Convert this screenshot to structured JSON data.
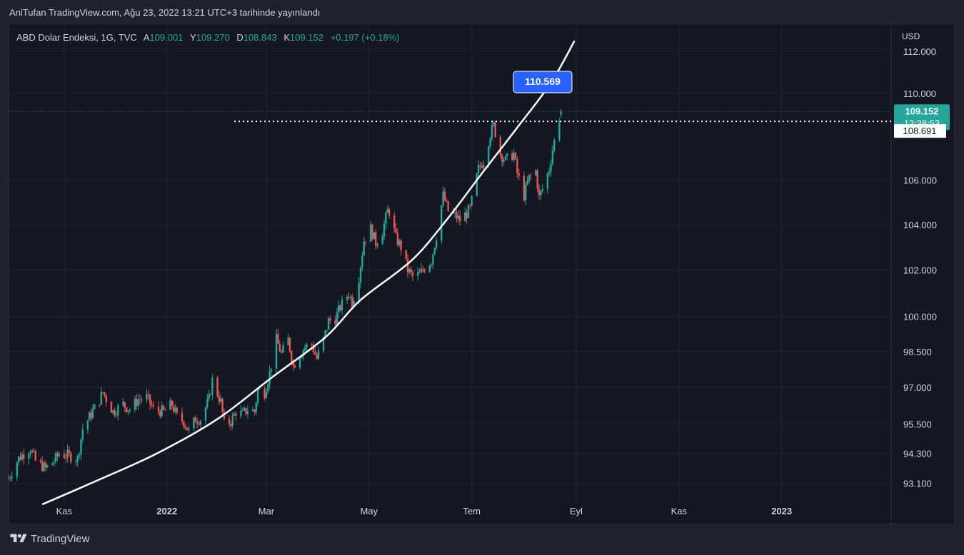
{
  "header": {
    "publish_line": "AnlTufan TradingView.com, Ağu 23, 2022 13:21 UTC+3 tarihinde yayınlandı"
  },
  "legend": {
    "symbol": "ABD Dolar Endeksi, 1G, TVC",
    "open_label": "A",
    "open": "109.001",
    "high_label": "Y",
    "high": "109.270",
    "low_label": "D",
    "low": "108.843",
    "close_label": "K",
    "close": "109.152",
    "change": "+0.197 (+0.18%)"
  },
  "footer": {
    "brand": "TradingView",
    "logo_icon": "tradingview-logo-icon"
  },
  "chart_data": {
    "type": "candlestick",
    "currency_label": "USD",
    "y_scale": "log",
    "ylim": [
      92.3,
      113.3
    ],
    "y_ticks": [
      "112.000",
      "110.000",
      "106.000",
      "104.000",
      "102.000",
      "100.000",
      "98.500",
      "97.000",
      "95.500",
      "94.300",
      "93.100"
    ],
    "x_ticks": [
      "Kas",
      "2022",
      "Mar",
      "May",
      "Tem",
      "Eyl",
      "Kas",
      "2023"
    ],
    "x_tick_dates": [
      "2021-11-01",
      "2022-01-01",
      "2022-03-01",
      "2022-05-01",
      "2022-07-01",
      "2022-09-01",
      "2022-11-01",
      "2023-01-01"
    ],
    "xlim": [
      "2021-09-29",
      "2023-03-07"
    ],
    "last_price": "109.152",
    "countdown": "12:38:53",
    "horizontal_line": {
      "value": 108.691,
      "label": "108.691"
    },
    "curve_label": "110.569",
    "colors": {
      "up": "#26a69a",
      "down": "#ef5350",
      "curve": "#ffffff",
      "label": "#2962ff"
    },
    "grid": true,
    "closes": [
      {
        "d": "2021-09-29",
        "c": 93.3
      },
      {
        "d": "2021-10-05",
        "c": 94.1
      },
      {
        "d": "2021-10-08",
        "c": 94.3
      },
      {
        "d": "2021-10-12",
        "c": 94.5
      },
      {
        "d": "2021-10-15",
        "c": 94.0
      },
      {
        "d": "2021-10-21",
        "c": 93.7
      },
      {
        "d": "2021-10-26",
        "c": 94.0
      },
      {
        "d": "2021-10-29",
        "c": 94.3
      },
      {
        "d": "2021-11-04",
        "c": 94.2
      },
      {
        "d": "2021-11-09",
        "c": 94.1
      },
      {
        "d": "2021-11-12",
        "c": 95.3
      },
      {
        "d": "2021-11-17",
        "c": 95.9
      },
      {
        "d": "2021-11-22",
        "c": 96.5
      },
      {
        "d": "2021-11-24",
        "c": 96.8
      },
      {
        "d": "2021-11-30",
        "c": 96.0
      },
      {
        "d": "2021-12-06",
        "c": 96.3
      },
      {
        "d": "2021-12-10",
        "c": 96.1
      },
      {
        "d": "2021-12-15",
        "c": 96.5
      },
      {
        "d": "2021-12-20",
        "c": 96.6
      },
      {
        "d": "2021-12-24",
        "c": 96.1
      },
      {
        "d": "2021-12-30",
        "c": 96.0
      },
      {
        "d": "2022-01-04",
        "c": 96.3
      },
      {
        "d": "2022-01-07",
        "c": 95.8
      },
      {
        "d": "2022-01-11",
        "c": 95.6
      },
      {
        "d": "2022-01-14",
        "c": 95.2
      },
      {
        "d": "2022-01-18",
        "c": 95.7
      },
      {
        "d": "2022-01-21",
        "c": 95.7
      },
      {
        "d": "2022-01-26",
        "c": 96.5
      },
      {
        "d": "2022-01-28",
        "c": 97.3
      },
      {
        "d": "2022-02-02",
        "c": 96.4
      },
      {
        "d": "2022-02-04",
        "c": 95.5
      },
      {
        "d": "2022-02-08",
        "c": 95.6
      },
      {
        "d": "2022-02-11",
        "c": 96.0
      },
      {
        "d": "2022-02-15",
        "c": 95.9
      },
      {
        "d": "2022-02-18",
        "c": 96.1
      },
      {
        "d": "2022-02-22",
        "c": 96.0
      },
      {
        "d": "2022-02-24",
        "c": 96.9
      },
      {
        "d": "2022-02-28",
        "c": 96.8
      },
      {
        "d": "2022-03-03",
        "c": 97.6
      },
      {
        "d": "2022-03-07",
        "c": 99.0
      },
      {
        "d": "2022-03-10",
        "c": 98.4
      },
      {
        "d": "2022-03-14",
        "c": 99.0
      },
      {
        "d": "2022-03-17",
        "c": 97.9
      },
      {
        "d": "2022-03-21",
        "c": 98.4
      },
      {
        "d": "2022-03-24",
        "c": 98.7
      },
      {
        "d": "2022-03-28",
        "c": 98.8
      },
      {
        "d": "2022-03-31",
        "c": 98.2
      },
      {
        "d": "2022-04-04",
        "c": 99.0
      },
      {
        "d": "2022-04-07",
        "c": 99.8
      },
      {
        "d": "2022-04-11",
        "c": 99.9
      },
      {
        "d": "2022-04-14",
        "c": 100.4
      },
      {
        "d": "2022-04-19",
        "c": 101.0
      },
      {
        "d": "2022-04-21",
        "c": 100.6
      },
      {
        "d": "2022-04-25",
        "c": 101.7
      },
      {
        "d": "2022-04-28",
        "c": 103.3
      },
      {
        "d": "2022-05-02",
        "c": 103.8
      },
      {
        "d": "2022-05-05",
        "c": 103.2
      },
      {
        "d": "2022-05-09",
        "c": 103.7
      },
      {
        "d": "2022-05-12",
        "c": 104.6
      },
      {
        "d": "2022-05-13",
        "c": 104.6
      },
      {
        "d": "2022-05-17",
        "c": 103.4
      },
      {
        "d": "2022-05-20",
        "c": 103.0
      },
      {
        "d": "2022-05-24",
        "c": 102.0
      },
      {
        "d": "2022-05-27",
        "c": 101.7
      },
      {
        "d": "2022-05-31",
        "c": 101.8
      },
      {
        "d": "2022-06-03",
        "c": 102.1
      },
      {
        "d": "2022-06-07",
        "c": 102.4
      },
      {
        "d": "2022-06-10",
        "c": 103.5
      },
      {
        "d": "2022-06-14",
        "c": 105.3
      },
      {
        "d": "2022-06-17",
        "c": 104.6
      },
      {
        "d": "2022-06-21",
        "c": 104.4
      },
      {
        "d": "2022-06-24",
        "c": 104.2
      },
      {
        "d": "2022-06-28",
        "c": 104.5
      },
      {
        "d": "2022-06-30",
        "c": 104.7
      },
      {
        "d": "2022-07-05",
        "c": 106.5
      },
      {
        "d": "2022-07-08",
        "c": 106.9
      },
      {
        "d": "2022-07-12",
        "c": 108.1
      },
      {
        "d": "2022-07-14",
        "c": 108.5
      },
      {
        "d": "2022-07-18",
        "c": 107.2
      },
      {
        "d": "2022-07-21",
        "c": 106.9
      },
      {
        "d": "2022-07-26",
        "c": 107.2
      },
      {
        "d": "2022-07-28",
        "c": 106.3
      },
      {
        "d": "2022-08-01",
        "c": 105.3
      },
      {
        "d": "2022-08-04",
        "c": 106.1
      },
      {
        "d": "2022-08-08",
        "c": 106.4
      },
      {
        "d": "2022-08-10",
        "c": 105.2
      },
      {
        "d": "2022-08-12",
        "c": 105.6
      },
      {
        "d": "2022-08-16",
        "c": 106.5
      },
      {
        "d": "2022-08-18",
        "c": 107.4
      },
      {
        "d": "2022-08-22",
        "c": 108.9
      },
      {
        "d": "2022-08-23",
        "c": 109.152
      }
    ],
    "curve_points": [
      {
        "d": "2021-10-19",
        "v": 92.27
      },
      {
        "d": "2021-11-20",
        "v": 93.2
      },
      {
        "d": "2021-12-26",
        "v": 94.3
      },
      {
        "d": "2022-01-31",
        "v": 95.7
      },
      {
        "d": "2022-03-04",
        "v": 97.4
      },
      {
        "d": "2022-04-05",
        "v": 99.1
      },
      {
        "d": "2022-04-26",
        "v": 100.7
      },
      {
        "d": "2022-05-26",
        "v": 102.4
      },
      {
        "d": "2022-06-16",
        "v": 104.2
      },
      {
        "d": "2022-07-08",
        "v": 106.4
      },
      {
        "d": "2022-07-28",
        "v": 108.4
      },
      {
        "d": "2022-08-17",
        "v": 110.5
      },
      {
        "d": "2022-08-31",
        "v": 112.5
      }
    ]
  }
}
